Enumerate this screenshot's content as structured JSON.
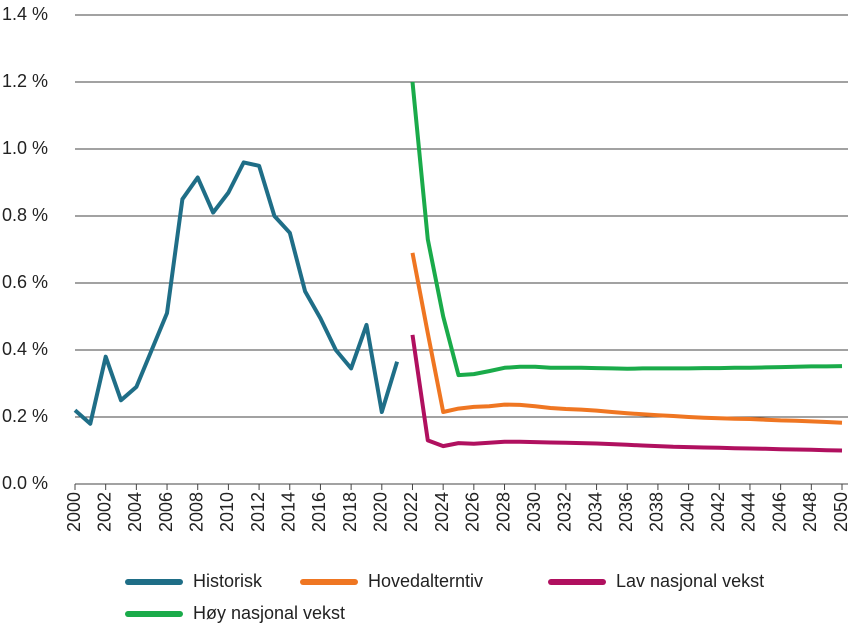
{
  "chart_data": {
    "type": "line",
    "x": [
      2000,
      2001,
      2002,
      2003,
      2004,
      2005,
      2006,
      2007,
      2008,
      2009,
      2010,
      2011,
      2012,
      2013,
      2014,
      2015,
      2016,
      2017,
      2018,
      2019,
      2020,
      2021,
      2022,
      2023,
      2024,
      2025,
      2026,
      2027,
      2028,
      2029,
      2030,
      2031,
      2032,
      2033,
      2034,
      2035,
      2036,
      2037,
      2038,
      2039,
      2040,
      2041,
      2042,
      2043,
      2044,
      2045,
      2046,
      2047,
      2048,
      2049,
      2050
    ],
    "series": [
      {
        "name": "Historisk",
        "color": "#1f6e87",
        "values": [
          0.22,
          0.18,
          0.38,
          0.25,
          0.29,
          0.4,
          0.51,
          0.85,
          0.915,
          0.81,
          0.87,
          0.96,
          0.95,
          0.8,
          0.75,
          0.575,
          0.495,
          0.4,
          0.345,
          0.475,
          0.215,
          0.365,
          null,
          null,
          null,
          null,
          null,
          null,
          null,
          null,
          null,
          null,
          null,
          null,
          null,
          null,
          null,
          null,
          null,
          null,
          null,
          null,
          null,
          null,
          null,
          null,
          null,
          null,
          null,
          null,
          null
        ]
      },
      {
        "name": "Hovedalterntiv",
        "color": "#ef7622",
        "values": [
          null,
          null,
          null,
          null,
          null,
          null,
          null,
          null,
          null,
          null,
          null,
          null,
          null,
          null,
          null,
          null,
          null,
          null,
          null,
          null,
          null,
          null,
          0.69,
          0.45,
          0.215,
          0.225,
          0.23,
          0.232,
          0.237,
          0.236,
          0.232,
          0.227,
          0.224,
          0.222,
          0.219,
          0.215,
          0.211,
          0.208,
          0.205,
          0.203,
          0.2,
          0.198,
          0.196,
          0.195,
          0.194,
          0.192,
          0.19,
          0.189,
          0.187,
          0.185,
          0.183
        ]
      },
      {
        "name": "Lav nasjonal vekst",
        "color": "#b0105f",
        "values": [
          null,
          null,
          null,
          null,
          null,
          null,
          null,
          null,
          null,
          null,
          null,
          null,
          null,
          null,
          null,
          null,
          null,
          null,
          null,
          null,
          null,
          null,
          0.445,
          0.13,
          0.113,
          0.122,
          0.12,
          0.123,
          0.126,
          0.126,
          0.125,
          0.124,
          0.123,
          0.122,
          0.121,
          0.119,
          0.117,
          0.115,
          0.113,
          0.111,
          0.11,
          0.109,
          0.108,
          0.107,
          0.106,
          0.105,
          0.104,
          0.103,
          0.102,
          0.101,
          0.1
        ]
      },
      {
        "name": "Høy nasjonal vekst",
        "color": "#1aab4a",
        "values": [
          null,
          null,
          null,
          null,
          null,
          null,
          null,
          null,
          null,
          null,
          null,
          null,
          null,
          null,
          null,
          null,
          null,
          null,
          null,
          null,
          null,
          null,
          1.2,
          0.73,
          0.5,
          0.325,
          0.328,
          0.337,
          0.347,
          0.35,
          0.35,
          0.347,
          0.347,
          0.347,
          0.346,
          0.345,
          0.344,
          0.345,
          0.345,
          0.345,
          0.345,
          0.346,
          0.346,
          0.347,
          0.347,
          0.348,
          0.349,
          0.35,
          0.351,
          0.351,
          0.352
        ]
      }
    ],
    "xlim": [
      2000,
      2050
    ],
    "xticks": [
      2000,
      2002,
      2004,
      2006,
      2008,
      2010,
      2012,
      2014,
      2016,
      2018,
      2020,
      2022,
      2024,
      2026,
      2028,
      2030,
      2032,
      2034,
      2036,
      2038,
      2040,
      2042,
      2044,
      2046,
      2048,
      2050
    ],
    "ylim": [
      0,
      1.4
    ],
    "yticks": [
      {
        "value": 0,
        "label": "0.0 %"
      },
      {
        "value": 0.2,
        "label": "0.2 %"
      },
      {
        "value": 0.4,
        "label": "0.4 %"
      },
      {
        "value": 0.6,
        "label": "0.6 %"
      },
      {
        "value": 0.8,
        "label": "0.8 %"
      },
      {
        "value": 1.0,
        "label": "1.0 %"
      },
      {
        "value": 1.2,
        "label": "1.2 %"
      },
      {
        "value": 1.4,
        "label": "1.4 %"
      }
    ],
    "grid": true
  }
}
